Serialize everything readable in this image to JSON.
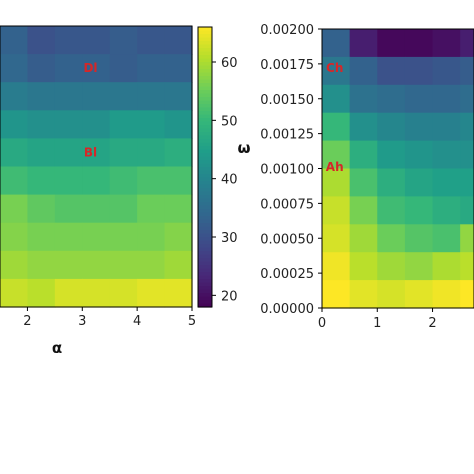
{
  "colors": {
    "colormap": [
      "#440154",
      "#482878",
      "#3e4a89",
      "#31688e",
      "#26828e",
      "#1f9e89",
      "#35b779",
      "#6ece58",
      "#b5de2b",
      "#fde725"
    ],
    "annotation": "#d62728",
    "frame": "#000000"
  },
  "chart_data": [
    {
      "type": "heatmap",
      "title": "",
      "xlabel": "α",
      "ylabel": "",
      "x_ticks": [
        "2",
        "3",
        "4",
        "5"
      ],
      "xlim": [
        1.5,
        5
      ],
      "columns_x": [
        1.5,
        2,
        2.5,
        3,
        3.5,
        4,
        4.5
      ],
      "colorbar": {
        "label": "ω",
        "range": [
          18,
          66
        ],
        "ticks": [
          "20",
          "30",
          "40",
          "50",
          "60"
        ]
      },
      "values": [
        [
          33,
          30,
          31,
          31,
          32,
          31,
          31
        ],
        [
          34,
          32,
          33,
          33,
          32,
          33,
          33
        ],
        [
          38,
          37,
          37,
          37,
          37,
          37,
          37
        ],
        [
          43,
          42,
          42,
          42,
          44,
          44,
          43
        ],
        [
          47,
          46,
          46,
          46,
          47,
          47,
          48
        ],
        [
          51,
          50,
          50,
          50,
          51,
          52,
          52
        ],
        [
          56,
          54,
          53,
          53,
          53,
          55,
          55
        ],
        [
          57,
          56,
          56,
          56,
          56,
          56,
          57
        ],
        [
          59,
          58,
          58,
          58,
          58,
          58,
          59
        ],
        [
          62,
          61,
          63,
          63,
          63,
          64,
          64
        ]
      ],
      "annotations": [
        {
          "text": "Dl",
          "x": 3.15,
          "row": 1
        },
        {
          "text": "Bl",
          "x": 3.15,
          "row": 4
        }
      ]
    },
    {
      "type": "heatmap",
      "title": "",
      "xlabel": "",
      "ylabel": "",
      "x_ticks": [
        "0",
        "1",
        "2"
      ],
      "xlim": [
        0,
        2.75
      ],
      "ylim": [
        0,
        0.002
      ],
      "y_ticks": [
        "0.00000",
        "0.00025",
        "0.00050",
        "0.00075",
        "0.00100",
        "0.00125",
        "0.00150",
        "0.00175",
        "0.00200"
      ],
      "columns_x": [
        0,
        0.5,
        1,
        1.5,
        2,
        2.5
      ],
      "values": [
        [
          33,
          22,
          19,
          19,
          20,
          22
        ],
        [
          37,
          33,
          30,
          30,
          31,
          32
        ],
        [
          42,
          36,
          35,
          34,
          34,
          35
        ],
        [
          50,
          42,
          40,
          39,
          39,
          40
        ],
        [
          55,
          48,
          44,
          43,
          42,
          42
        ],
        [
          60,
          52,
          48,
          46,
          45,
          45
        ],
        [
          62,
          56,
          51,
          50,
          48,
          47
        ],
        [
          63,
          59,
          55,
          53,
          52,
          58
        ],
        [
          65,
          61,
          59,
          58,
          60,
          61
        ],
        [
          66,
          64,
          63,
          64,
          65,
          66
        ]
      ],
      "annotations": [
        {
          "text": "Ch",
          "x": 0.23,
          "y": 0.00172
        },
        {
          "text": "Ah",
          "x": 0.23,
          "y": 0.00101
        }
      ]
    }
  ]
}
